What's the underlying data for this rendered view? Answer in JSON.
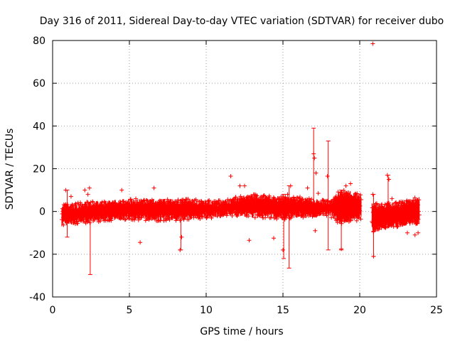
{
  "chart_data": {
    "type": "scatter",
    "title": "Day 316 of 2011, Sidereal Day-to-day VTEC variation (SDTVAR) for receiver dubo",
    "xlabel": "GPS time / hours",
    "ylabel": "SDTVAR / TECUs",
    "xlim": [
      0,
      25
    ],
    "ylim": [
      -40,
      80
    ],
    "xticks": [
      0,
      5,
      10,
      15,
      20,
      25
    ],
    "yticks": [
      -40,
      -20,
      0,
      20,
      40,
      60,
      80
    ],
    "grid": true,
    "marker": "+",
    "error_bars": true,
    "color": "#ff0000",
    "segments": [
      {
        "x_start": 0.6,
        "x_end": 20.1,
        "band_low": -5,
        "band_high": 5
      },
      {
        "x_start": 20.8,
        "x_end": 23.9,
        "band_low": -6,
        "band_high": 6
      }
    ],
    "band_profile": {
      "x": [
        0.6,
        1.5,
        3.0,
        5.0,
        7.0,
        9.0,
        10.5,
        11.5,
        12.5,
        14.0,
        15.0,
        16.0,
        17.0,
        18.0,
        18.7,
        19.3,
        20.1,
        20.8,
        22.0,
        23.9
      ],
      "low": [
        -7,
        -6,
        -5,
        -4,
        -4.5,
        -4,
        -3,
        -2,
        -3,
        -3,
        -4,
        -3,
        -3,
        -2,
        -6,
        -5,
        -4,
        -10,
        -8,
        -6
      ],
      "high": [
        4,
        4,
        5,
        6,
        6,
        6,
        5,
        6,
        8,
        8,
        7,
        7,
        6,
        5,
        10,
        10,
        8,
        4,
        4,
        7
      ]
    },
    "points": [
      {
        "x": 20.85,
        "y": 78.5
      },
      {
        "x": 0.85,
        "y": 10
      },
      {
        "x": 1.2,
        "y": 7
      },
      {
        "x": 2.1,
        "y": 10
      },
      {
        "x": 2.4,
        "y": 11
      },
      {
        "x": 2.3,
        "y": 8
      },
      {
        "x": 4.5,
        "y": 10
      },
      {
        "x": 5.7,
        "y": -14.5
      },
      {
        "x": 6.6,
        "y": 11
      },
      {
        "x": 8.3,
        "y": -18
      },
      {
        "x": 8.4,
        "y": -12
      },
      {
        "x": 11.6,
        "y": 16.5
      },
      {
        "x": 12.2,
        "y": 12
      },
      {
        "x": 12.5,
        "y": 12
      },
      {
        "x": 12.8,
        "y": -13.5
      },
      {
        "x": 14.4,
        "y": -12.5
      },
      {
        "x": 15.0,
        "y": -18
      },
      {
        "x": 15.3,
        "y": 8
      },
      {
        "x": 15.5,
        "y": 12
      },
      {
        "x": 16.6,
        "y": 11
      },
      {
        "x": 17.0,
        "y": 27
      },
      {
        "x": 17.05,
        "y": 25
      },
      {
        "x": 17.15,
        "y": 18
      },
      {
        "x": 17.3,
        "y": 8.5
      },
      {
        "x": 17.1,
        "y": -9
      },
      {
        "x": 17.9,
        "y": 16.5
      },
      {
        "x": 18.8,
        "y": -17.5
      },
      {
        "x": 19.1,
        "y": 12
      },
      {
        "x": 19.4,
        "y": 13
      },
      {
        "x": 20.85,
        "y": 8
      },
      {
        "x": 20.9,
        "y": -21
      },
      {
        "x": 21.8,
        "y": 17
      },
      {
        "x": 21.9,
        "y": 15
      },
      {
        "x": 22.1,
        "y": 6
      },
      {
        "x": 23.1,
        "y": -10
      },
      {
        "x": 23.6,
        "y": -11
      },
      {
        "x": 23.8,
        "y": -10
      }
    ],
    "error_bars_list": [
      {
        "x": 2.45,
        "low": -29.5,
        "high": 0
      },
      {
        "x": 0.95,
        "low": -12,
        "high": 10
      },
      {
        "x": 8.35,
        "low": -18,
        "high": 2
      },
      {
        "x": 15.05,
        "low": -22,
        "high": 8
      },
      {
        "x": 15.4,
        "low": -26.5,
        "high": 12
      },
      {
        "x": 17.0,
        "low": 2,
        "high": 39
      },
      {
        "x": 17.95,
        "low": -18,
        "high": 33
      },
      {
        "x": 18.8,
        "low": -18,
        "high": 10
      },
      {
        "x": 20.9,
        "low": -21,
        "high": 8
      },
      {
        "x": 21.85,
        "low": 0,
        "high": 17
      }
    ]
  }
}
